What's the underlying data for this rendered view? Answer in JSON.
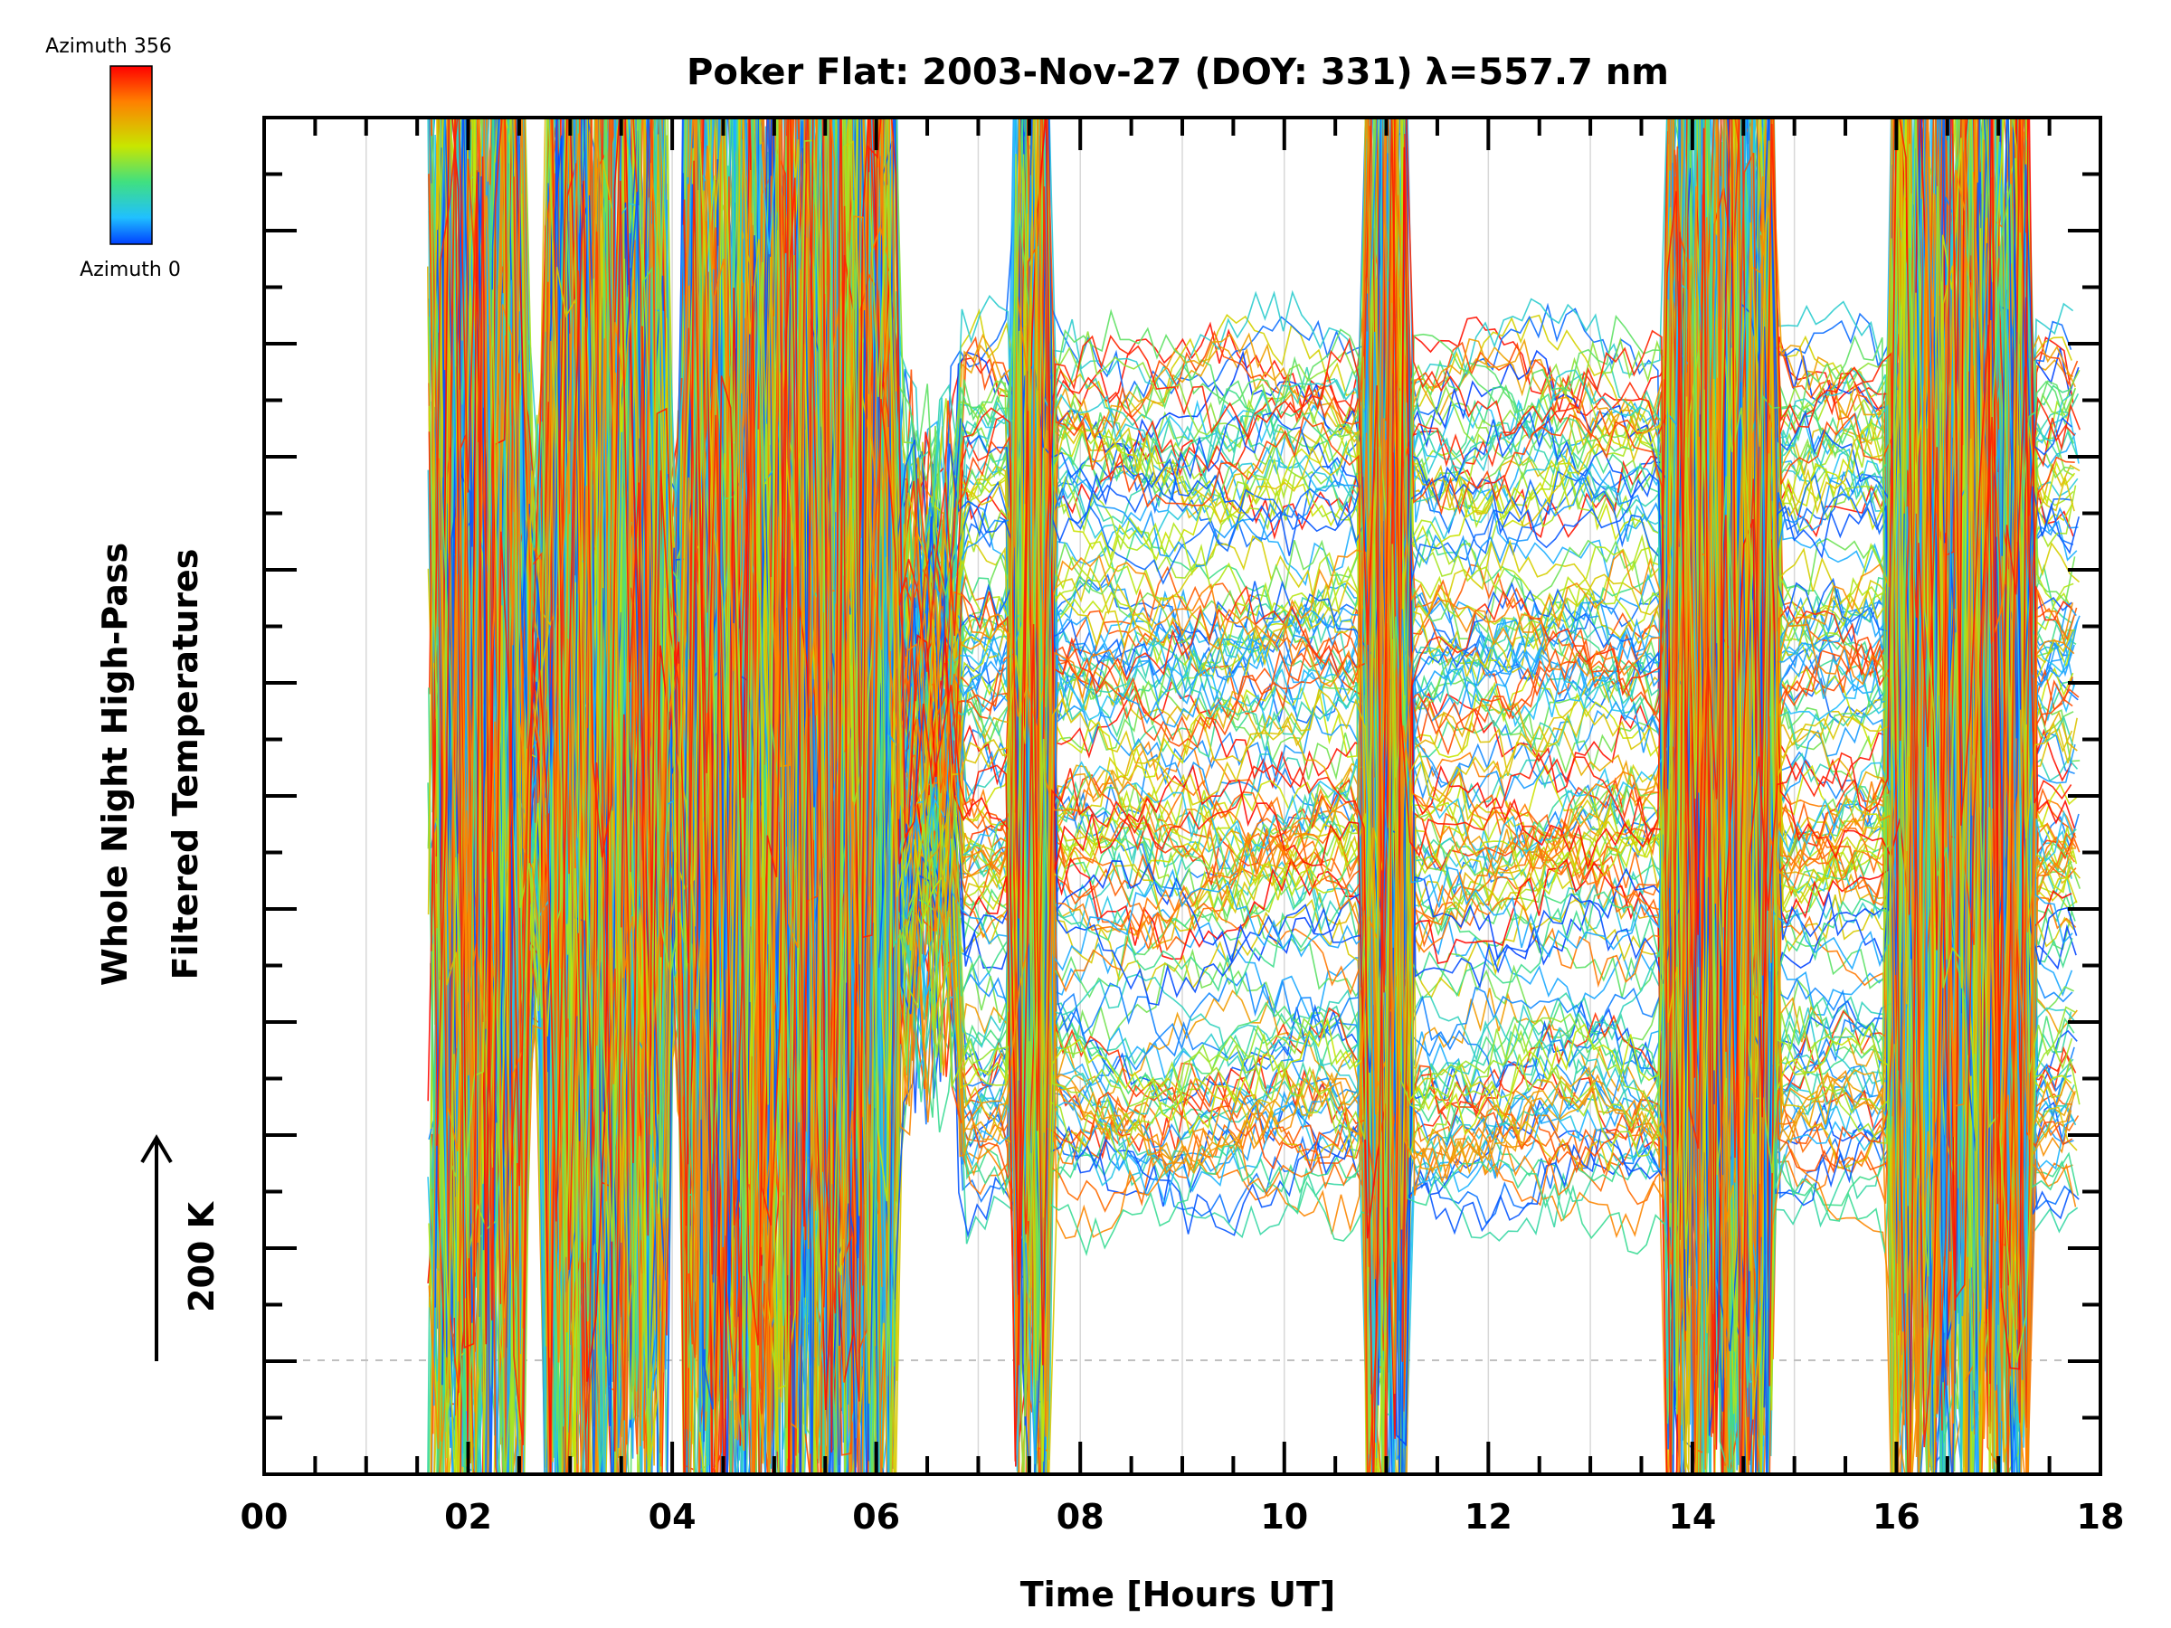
{
  "chart_data": {
    "type": "line",
    "title": "Poker Flat: 2003-Nov-27 (DOY: 331) λ=557.7 nm",
    "xlabel": "Time [Hours UT]",
    "ylabel_line1": "Whole Night High-Pass",
    "ylabel_line2": "Filtered Temperatures",
    "xlim": [
      0,
      18
    ],
    "x_ticks": [
      0,
      2,
      4,
      6,
      8,
      10,
      12,
      14,
      16,
      18
    ],
    "x_tick_labels": [
      "00",
      "02",
      "04",
      "06",
      "08",
      "10",
      "12",
      "14",
      "16",
      "18"
    ],
    "x_minor_step": 0.5,
    "vertical_gridlines": true,
    "scale_bar_label": "200 K",
    "colorbar": {
      "top_label": "Azimuth 356",
      "bottom_label": "Azimuth 0",
      "colors": [
        "#ff0000",
        "#ff8000",
        "#c8e600",
        "#40e080",
        "#20c0ff",
        "#0040ff"
      ]
    },
    "data_time_range": [
      1.6,
      17.8
    ],
    "band_baselines": [
      0.24,
      0.42,
      0.58,
      0.74
    ],
    "cloud_bursts": [
      [
        1.6,
        2.55
      ],
      [
        2.75,
        3.95
      ],
      [
        4.1,
        6.2
      ],
      [
        7.35,
        7.7
      ],
      [
        10.8,
        11.2
      ],
      [
        13.75,
        14.8
      ],
      [
        15.95,
        17.3
      ]
    ],
    "num_traces": 150
  },
  "colors": {
    "axis": "#000000",
    "gridline": "#d8d8d8",
    "baseline": "#c0c0c0"
  }
}
